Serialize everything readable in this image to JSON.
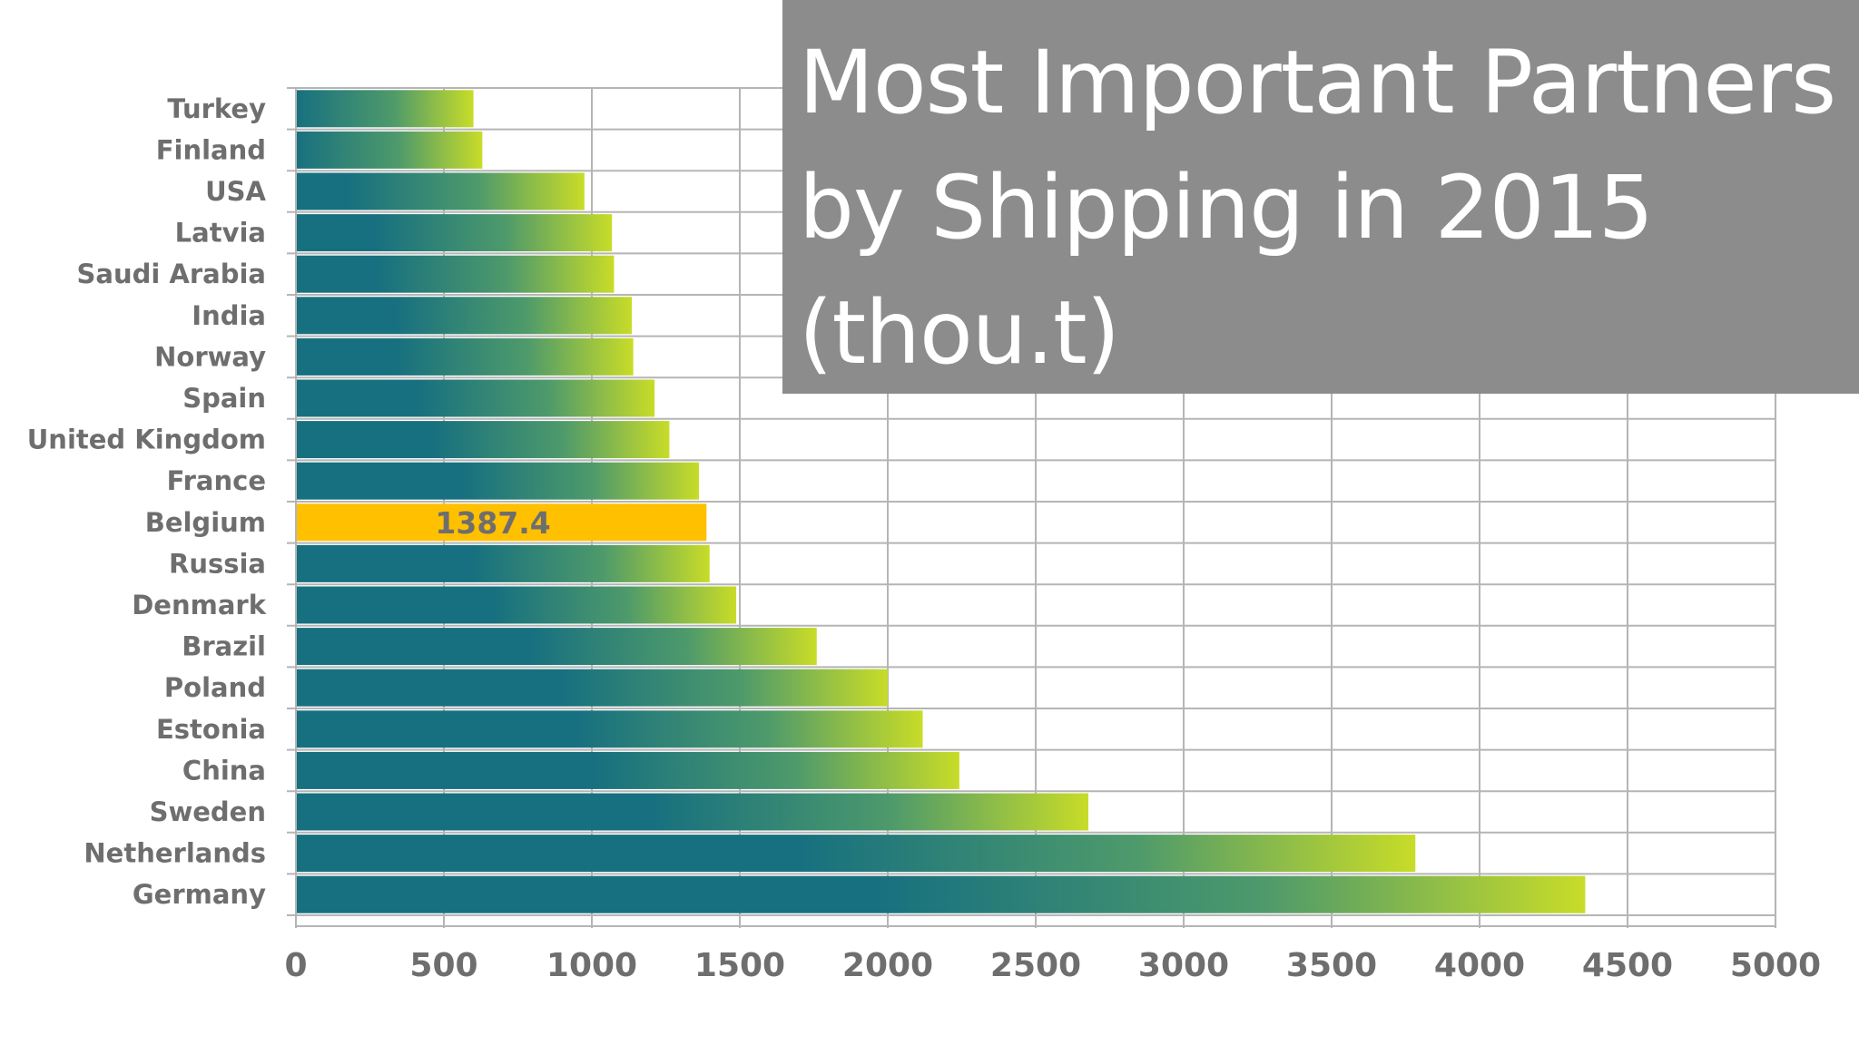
{
  "chart_data": {
    "type": "bar",
    "orientation": "horizontal",
    "title": "Most Important Partners by Shipping in 2015 (thou.t)",
    "categories": [
      "Turkey",
      "Finland",
      "USA",
      "Latvia",
      "Saudi Arabia",
      "India",
      "Norway",
      "Spain",
      "United Kingdom",
      "France",
      "Belgium",
      "Russia",
      "Denmark",
      "Brazil",
      "Poland",
      "Estonia",
      "China",
      "Sweden",
      "Netherlands",
      "Germany"
    ],
    "values": [
      600,
      630,
      975,
      1068,
      1075,
      1135,
      1140,
      1212,
      1262,
      1362,
      1387.4,
      1398,
      1488,
      1760,
      2000,
      2118,
      2242,
      2678,
      3783,
      4357
    ],
    "xlim": [
      0,
      5000
    ],
    "xticks": [
      "0",
      "500",
      "1000",
      "1500",
      "2000",
      "2500",
      "3000",
      "3500",
      "4000",
      "4500",
      "5000"
    ],
    "highlight": {
      "category": "Belgium",
      "label": "1387.4",
      "color": "#ffc000"
    },
    "bar_gradient": [
      "#17707f",
      "#4e9a6b",
      "#c8dc28"
    ],
    "grid": true,
    "legend": "none"
  }
}
